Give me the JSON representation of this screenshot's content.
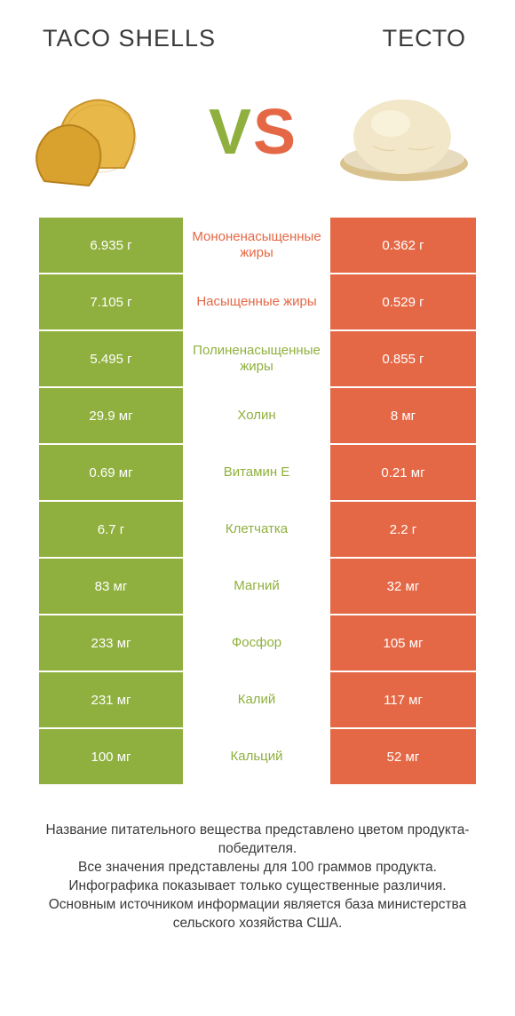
{
  "header": {
    "left": "TACO SHELLS",
    "right": "ТЕСТО"
  },
  "vs": {
    "v": "V",
    "s": "S"
  },
  "colors": {
    "green": "#8fb03e",
    "orange": "#e56846",
    "taco_shell": "#e8b848",
    "taco_shell_dark": "#c9932e",
    "dough": "#f2e8c9",
    "dough_board": "#d9c28e"
  },
  "rows": [
    {
      "left": "6.935 г",
      "mid": "Мононенасыщенные жиры",
      "right": "0.362 г",
      "left_class": "green-bg",
      "mid_color": "#e56846",
      "right_class": "orange-bg"
    },
    {
      "left": "7.105 г",
      "mid": "Насыщенные жиры",
      "right": "0.529 г",
      "left_class": "green-bg",
      "mid_color": "#e56846",
      "right_class": "orange-bg"
    },
    {
      "left": "5.495 г",
      "mid": "Полиненасыщенные жиры",
      "right": "0.855 г",
      "left_class": "green-bg",
      "mid_color": "#8fb03e",
      "right_class": "orange-bg"
    },
    {
      "left": "29.9 мг",
      "mid": "Холин",
      "right": "8 мг",
      "left_class": "green-bg",
      "mid_color": "#8fb03e",
      "right_class": "orange-bg"
    },
    {
      "left": "0.69 мг",
      "mid": "Витамин E",
      "right": "0.21 мг",
      "left_class": "green-bg",
      "mid_color": "#8fb03e",
      "right_class": "orange-bg"
    },
    {
      "left": "6.7 г",
      "mid": "Клетчатка",
      "right": "2.2 г",
      "left_class": "green-bg",
      "mid_color": "#8fb03e",
      "right_class": "orange-bg"
    },
    {
      "left": "83 мг",
      "mid": "Магний",
      "right": "32 мг",
      "left_class": "green-bg",
      "mid_color": "#8fb03e",
      "right_class": "orange-bg"
    },
    {
      "left": "233 мг",
      "mid": "Фосфор",
      "right": "105 мг",
      "left_class": "green-bg",
      "mid_color": "#8fb03e",
      "right_class": "orange-bg"
    },
    {
      "left": "231 мг",
      "mid": "Калий",
      "right": "117 мг",
      "left_class": "green-bg",
      "mid_color": "#8fb03e",
      "right_class": "orange-bg"
    },
    {
      "left": "100 мг",
      "mid": "Кальций",
      "right": "52 мг",
      "left_class": "green-bg",
      "mid_color": "#8fb03e",
      "right_class": "orange-bg"
    }
  ],
  "footer": {
    "line1": "Название питательного вещества представлено цветом продукта-победителя.",
    "line2": "Все значения представлены для 100 граммов продукта.",
    "line3": "Инфографика показывает только существенные различия.",
    "line4": "Основным источником информации является база министерства сельского хозяйства США."
  }
}
